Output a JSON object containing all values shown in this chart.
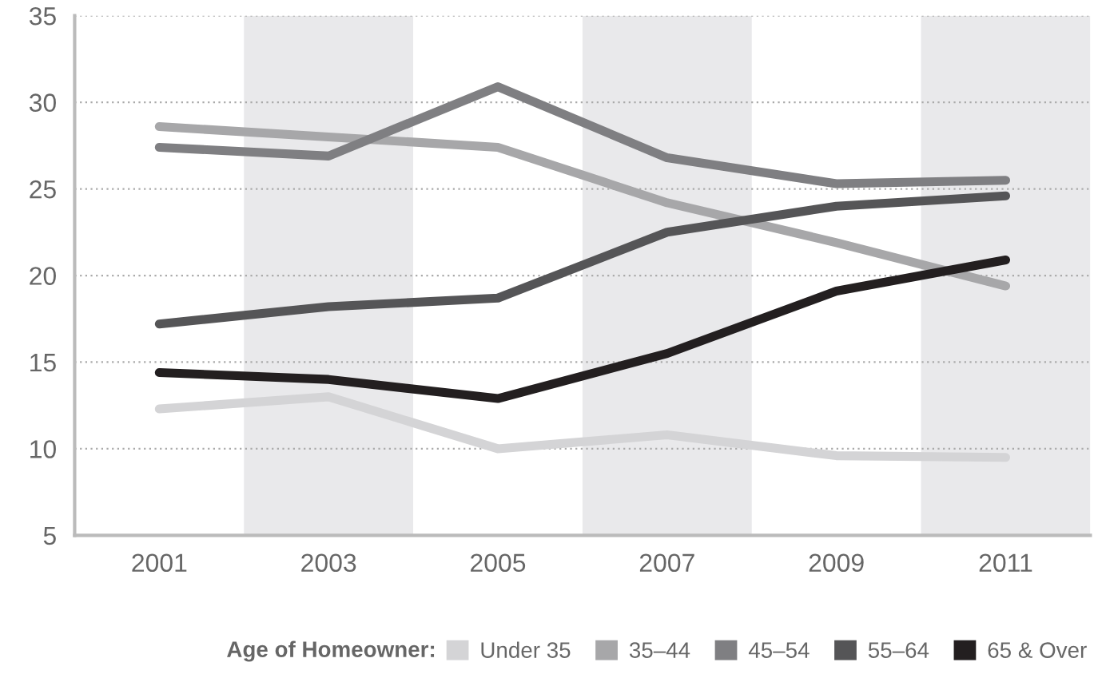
{
  "chart_data": {
    "type": "line",
    "legend_title": "Age of Homeowner:",
    "x": [
      2001,
      2003,
      2005,
      2007,
      2009,
      2011
    ],
    "xlim": [
      2000,
      2012
    ],
    "xticks": [
      2001,
      2003,
      2005,
      2007,
      2009,
      2011
    ],
    "ylim": [
      5,
      35
    ],
    "yticks": [
      5,
      10,
      15,
      20,
      25,
      30,
      35
    ],
    "grid": "y",
    "legend": "bottom",
    "marker": "none",
    "line_style": "solid",
    "bands": [
      {
        "axis": "x",
        "from": 2002,
        "to": 2004,
        "color": "#e9e9eb"
      },
      {
        "axis": "x",
        "from": 2006,
        "to": 2008,
        "color": "#e9e9eb"
      },
      {
        "axis": "x",
        "from": 2010,
        "to": 2012,
        "color": "#e9e9eb"
      }
    ],
    "series": [
      {
        "name": "Under 35",
        "color": "#d4d4d6",
        "values": [
          12.3,
          13.0,
          10.0,
          10.8,
          9.6,
          9.5
        ]
      },
      {
        "name": "35–44",
        "color": "#a7a7a9",
        "values": [
          28.6,
          28.0,
          27.4,
          24.2,
          21.9,
          19.4
        ]
      },
      {
        "name": "45–54",
        "color": "#7f7f82",
        "values": [
          27.4,
          26.9,
          30.9,
          26.8,
          25.3,
          25.5
        ]
      },
      {
        "name": "55–64",
        "color": "#555557",
        "values": [
          17.2,
          18.2,
          18.7,
          22.5,
          24.0,
          24.6
        ]
      },
      {
        "name": "65 & Over",
        "color": "#231f20",
        "values": [
          14.4,
          14.0,
          12.9,
          15.5,
          19.1,
          20.9
        ]
      }
    ]
  }
}
